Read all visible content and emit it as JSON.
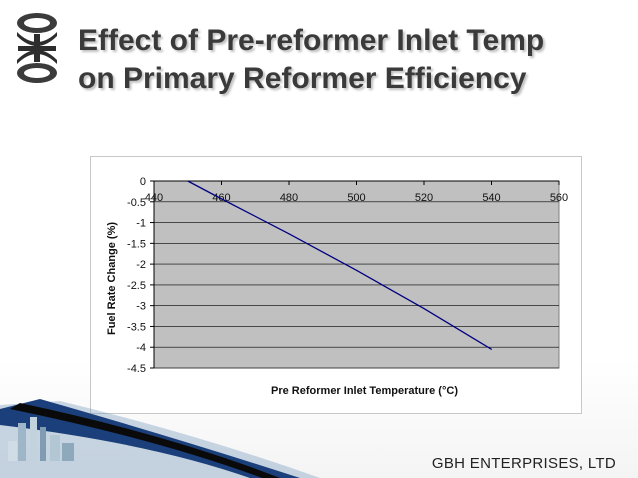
{
  "slide": {
    "title_line1": "Effect of Pre-reformer Inlet Temp",
    "title_line2": "on Primary Reformer Efficiency",
    "company": "GBH ENTERPRISES, LTD",
    "logo_icon": "gbh-logo-icon",
    "accent_color": "#3a3a3a"
  },
  "chart_data": {
    "type": "line",
    "title": "",
    "xlabel": "Pre Reformer Inlet Temperature (°C)",
    "ylabel": "Fuel Rate Change (%)",
    "xlim": [
      440,
      560
    ],
    "ylim": [
      -4.5,
      0
    ],
    "x_ticks": [
      "440",
      "460",
      "480",
      "500",
      "520",
      "540",
      "560"
    ],
    "y_ticks": [
      "0",
      "-0.5",
      "-1",
      "-1.5",
      "-2",
      "-2.5",
      "-3",
      "-3.5",
      "-4",
      "-4.5"
    ],
    "grid": true,
    "legend": "none",
    "plot_background": "#c0c0c0",
    "series": [
      {
        "color": "#000080",
        "x": [
          450,
          460,
          480,
          500,
          520,
          540
        ],
        "y": [
          0,
          -0.43,
          -1.27,
          -2.15,
          -3.07,
          -4.05
        ]
      }
    ]
  }
}
